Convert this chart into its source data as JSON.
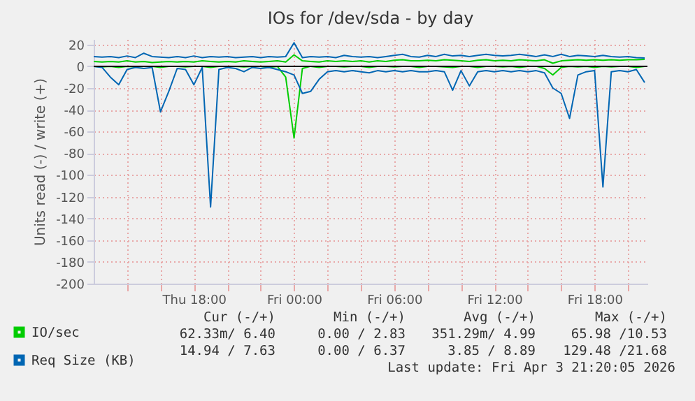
{
  "chart_data": {
    "type": "line",
    "title": "IOs for /dev/sda - by day",
    "ylabel": "Units read (-) / write (+)",
    "x": [
      "2026-04-02T12:00",
      "2026-04-02T12:30",
      "2026-04-02T13:00",
      "2026-04-02T13:30",
      "2026-04-02T14:00",
      "2026-04-02T14:30",
      "2026-04-02T15:00",
      "2026-04-02T15:30",
      "2026-04-02T16:00",
      "2026-04-02T16:30",
      "2026-04-02T17:00",
      "2026-04-02T17:30",
      "2026-04-02T18:00",
      "2026-04-02T18:30",
      "2026-04-02T19:00",
      "2026-04-02T19:30",
      "2026-04-02T20:00",
      "2026-04-02T20:30",
      "2026-04-02T21:00",
      "2026-04-02T21:30",
      "2026-04-02T22:00",
      "2026-04-02T22:30",
      "2026-04-02T23:00",
      "2026-04-02T23:30",
      "2026-04-03T00:00",
      "2026-04-03T00:30",
      "2026-04-03T01:00",
      "2026-04-03T01:30",
      "2026-04-03T02:00",
      "2026-04-03T02:30",
      "2026-04-03T03:00",
      "2026-04-03T03:30",
      "2026-04-03T04:00",
      "2026-04-03T04:30",
      "2026-04-03T05:00",
      "2026-04-03T05:30",
      "2026-04-03T06:00",
      "2026-04-03T06:30",
      "2026-04-03T07:00",
      "2026-04-03T07:30",
      "2026-04-03T08:00",
      "2026-04-03T08:30",
      "2026-04-03T09:00",
      "2026-04-03T09:30",
      "2026-04-03T10:00",
      "2026-04-03T10:30",
      "2026-04-03T11:00",
      "2026-04-03T11:30",
      "2026-04-03T12:00",
      "2026-04-03T12:30",
      "2026-04-03T13:00",
      "2026-04-03T13:30",
      "2026-04-03T14:00",
      "2026-04-03T14:30",
      "2026-04-03T15:00",
      "2026-04-03T15:30",
      "2026-04-03T16:00",
      "2026-04-03T16:30",
      "2026-04-03T17:00",
      "2026-04-03T17:30",
      "2026-04-03T18:00",
      "2026-04-03T18:30",
      "2026-04-03T19:00",
      "2026-04-03T19:30",
      "2026-04-03T20:00",
      "2026-04-03T20:30",
      "2026-04-03T21:00"
    ],
    "xlim": [
      "2026-04-02T12:00",
      "2026-04-03T21:10"
    ],
    "xticks": [
      {
        "value": "2026-04-02T14:00",
        "label": null
      },
      {
        "value": "2026-04-02T16:00",
        "label": null
      },
      {
        "value": "2026-04-02T18:00",
        "label": "Thu 18:00"
      },
      {
        "value": "2026-04-02T20:00",
        "label": null
      },
      {
        "value": "2026-04-02T22:00",
        "label": null
      },
      {
        "value": "2026-04-03T00:00",
        "label": "Fri 00:00"
      },
      {
        "value": "2026-04-03T02:00",
        "label": null
      },
      {
        "value": "2026-04-03T04:00",
        "label": null
      },
      {
        "value": "2026-04-03T06:00",
        "label": "Fri 06:00"
      },
      {
        "value": "2026-04-03T08:00",
        "label": null
      },
      {
        "value": "2026-04-03T10:00",
        "label": null
      },
      {
        "value": "2026-04-03T12:00",
        "label": "Fri 12:00"
      },
      {
        "value": "2026-04-03T14:00",
        "label": null
      },
      {
        "value": "2026-04-03T16:00",
        "label": null
      },
      {
        "value": "2026-04-03T18:00",
        "label": "Fri 18:00"
      },
      {
        "value": "2026-04-03T20:00",
        "label": null
      }
    ],
    "ylim": [
      -200,
      25
    ],
    "yticks": [
      -200,
      -180,
      -160,
      -140,
      -120,
      -100,
      -80,
      -60,
      -40,
      -20,
      0,
      20
    ],
    "grid": true,
    "legend": "bottom left",
    "marker": "none",
    "line_style": "solid",
    "ref_lines": [
      {
        "axis": "y",
        "value": 0,
        "color": "#000000"
      }
    ],
    "series": [
      {
        "name": "IO/sec",
        "color": "#00cc00",
        "values": [
          4.5,
          4,
          4.5,
          4,
          5,
          4,
          4.5,
          3.5,
          4,
          4.5,
          4,
          4.5,
          4,
          5,
          4.5,
          4,
          4.5,
          4,
          5,
          4.5,
          4,
          4.5,
          5,
          4,
          10.53,
          5,
          4.5,
          4,
          5,
          4.5,
          5,
          4.5,
          5,
          4,
          5,
          4.5,
          5.5,
          6,
          5,
          5,
          5.5,
          5,
          6,
          5.5,
          5,
          4.5,
          5.5,
          6,
          5,
          5.5,
          5,
          6,
          5.5,
          5,
          6,
          2.83,
          5,
          5.5,
          6,
          5.5,
          6,
          5.5,
          6,
          5.5,
          6,
          6,
          6.4
        ]
      },
      {
        "color": "#00cc00",
        "values": [
          0,
          -0.5,
          0,
          -1,
          0,
          -0.5,
          0,
          0,
          -1,
          0,
          0,
          -0.5,
          0,
          0,
          -1,
          0,
          0,
          0,
          -0.5,
          0,
          0,
          -1,
          0,
          -10,
          -65.98,
          -2,
          0,
          -1,
          0,
          0,
          -0.5,
          0,
          0,
          -1,
          0,
          0,
          -0.5,
          0,
          0,
          -1,
          0,
          0,
          -0.5,
          -1,
          0,
          0,
          -1,
          0,
          0,
          -0.5,
          0,
          -1,
          0,
          0,
          -2,
          -8,
          -1,
          0,
          -0.5,
          0,
          -1,
          0,
          -0.5,
          0,
          0,
          -1,
          -0.06233
        ]
      },
      {
        "name": "Req Size (KB)",
        "color": "#0066b3",
        "values": [
          9,
          8.5,
          9,
          8,
          9.5,
          8,
          12,
          9,
          8.5,
          8,
          9,
          8,
          9.5,
          8,
          9,
          8.5,
          9,
          8,
          8.5,
          9,
          8,
          9,
          8.5,
          9,
          21.68,
          8,
          9,
          8.5,
          9,
          8,
          10,
          9,
          8.5,
          9,
          8,
          9,
          10,
          11,
          9,
          8.5,
          10,
          9,
          11,
          9.5,
          10,
          9,
          10,
          11,
          10,
          9.5,
          10,
          11,
          10,
          9,
          10.5,
          9,
          11,
          9,
          10,
          9.5,
          9,
          10,
          9,
          8.5,
          9,
          8,
          7.63
        ]
      },
      {
        "color": "#0066b3",
        "values": [
          0,
          -1,
          -10,
          -17,
          -3,
          -1,
          -2,
          -1,
          -42,
          -23,
          -2,
          -3,
          -17,
          -1,
          -129.48,
          -3,
          -1,
          -2,
          -5,
          -1,
          -2,
          -1,
          -3,
          -5,
          -8,
          -25,
          -23,
          -12,
          -5,
          -4,
          -5,
          -4,
          -5,
          -6,
          -4,
          -5,
          -4,
          -5,
          -4,
          -5,
          -5,
          -4,
          -5,
          -22,
          -4,
          -18,
          -5,
          -4,
          -5,
          -4,
          -5,
          -4,
          -5,
          -4,
          -6,
          -20,
          -25,
          -48,
          -8,
          -5,
          -4,
          -111,
          -5,
          -4,
          -5,
          -3,
          -14.94
        ]
      }
    ],
    "annotations": [
      "Cur (-/+)",
      "Min (-/+)",
      "Avg (-/+)",
      "Max (-/+)",
      "62.33m/ 6.40",
      "0.00 / 2.83",
      "351.29m/ 4.99",
      "65.98 /10.53",
      "14.94 / 7.63",
      "0.00 / 6.37",
      "3.85 / 8.89",
      "129.48 /21.68",
      "Last update: Fri Apr  3 21:20:05 2026"
    ]
  }
}
